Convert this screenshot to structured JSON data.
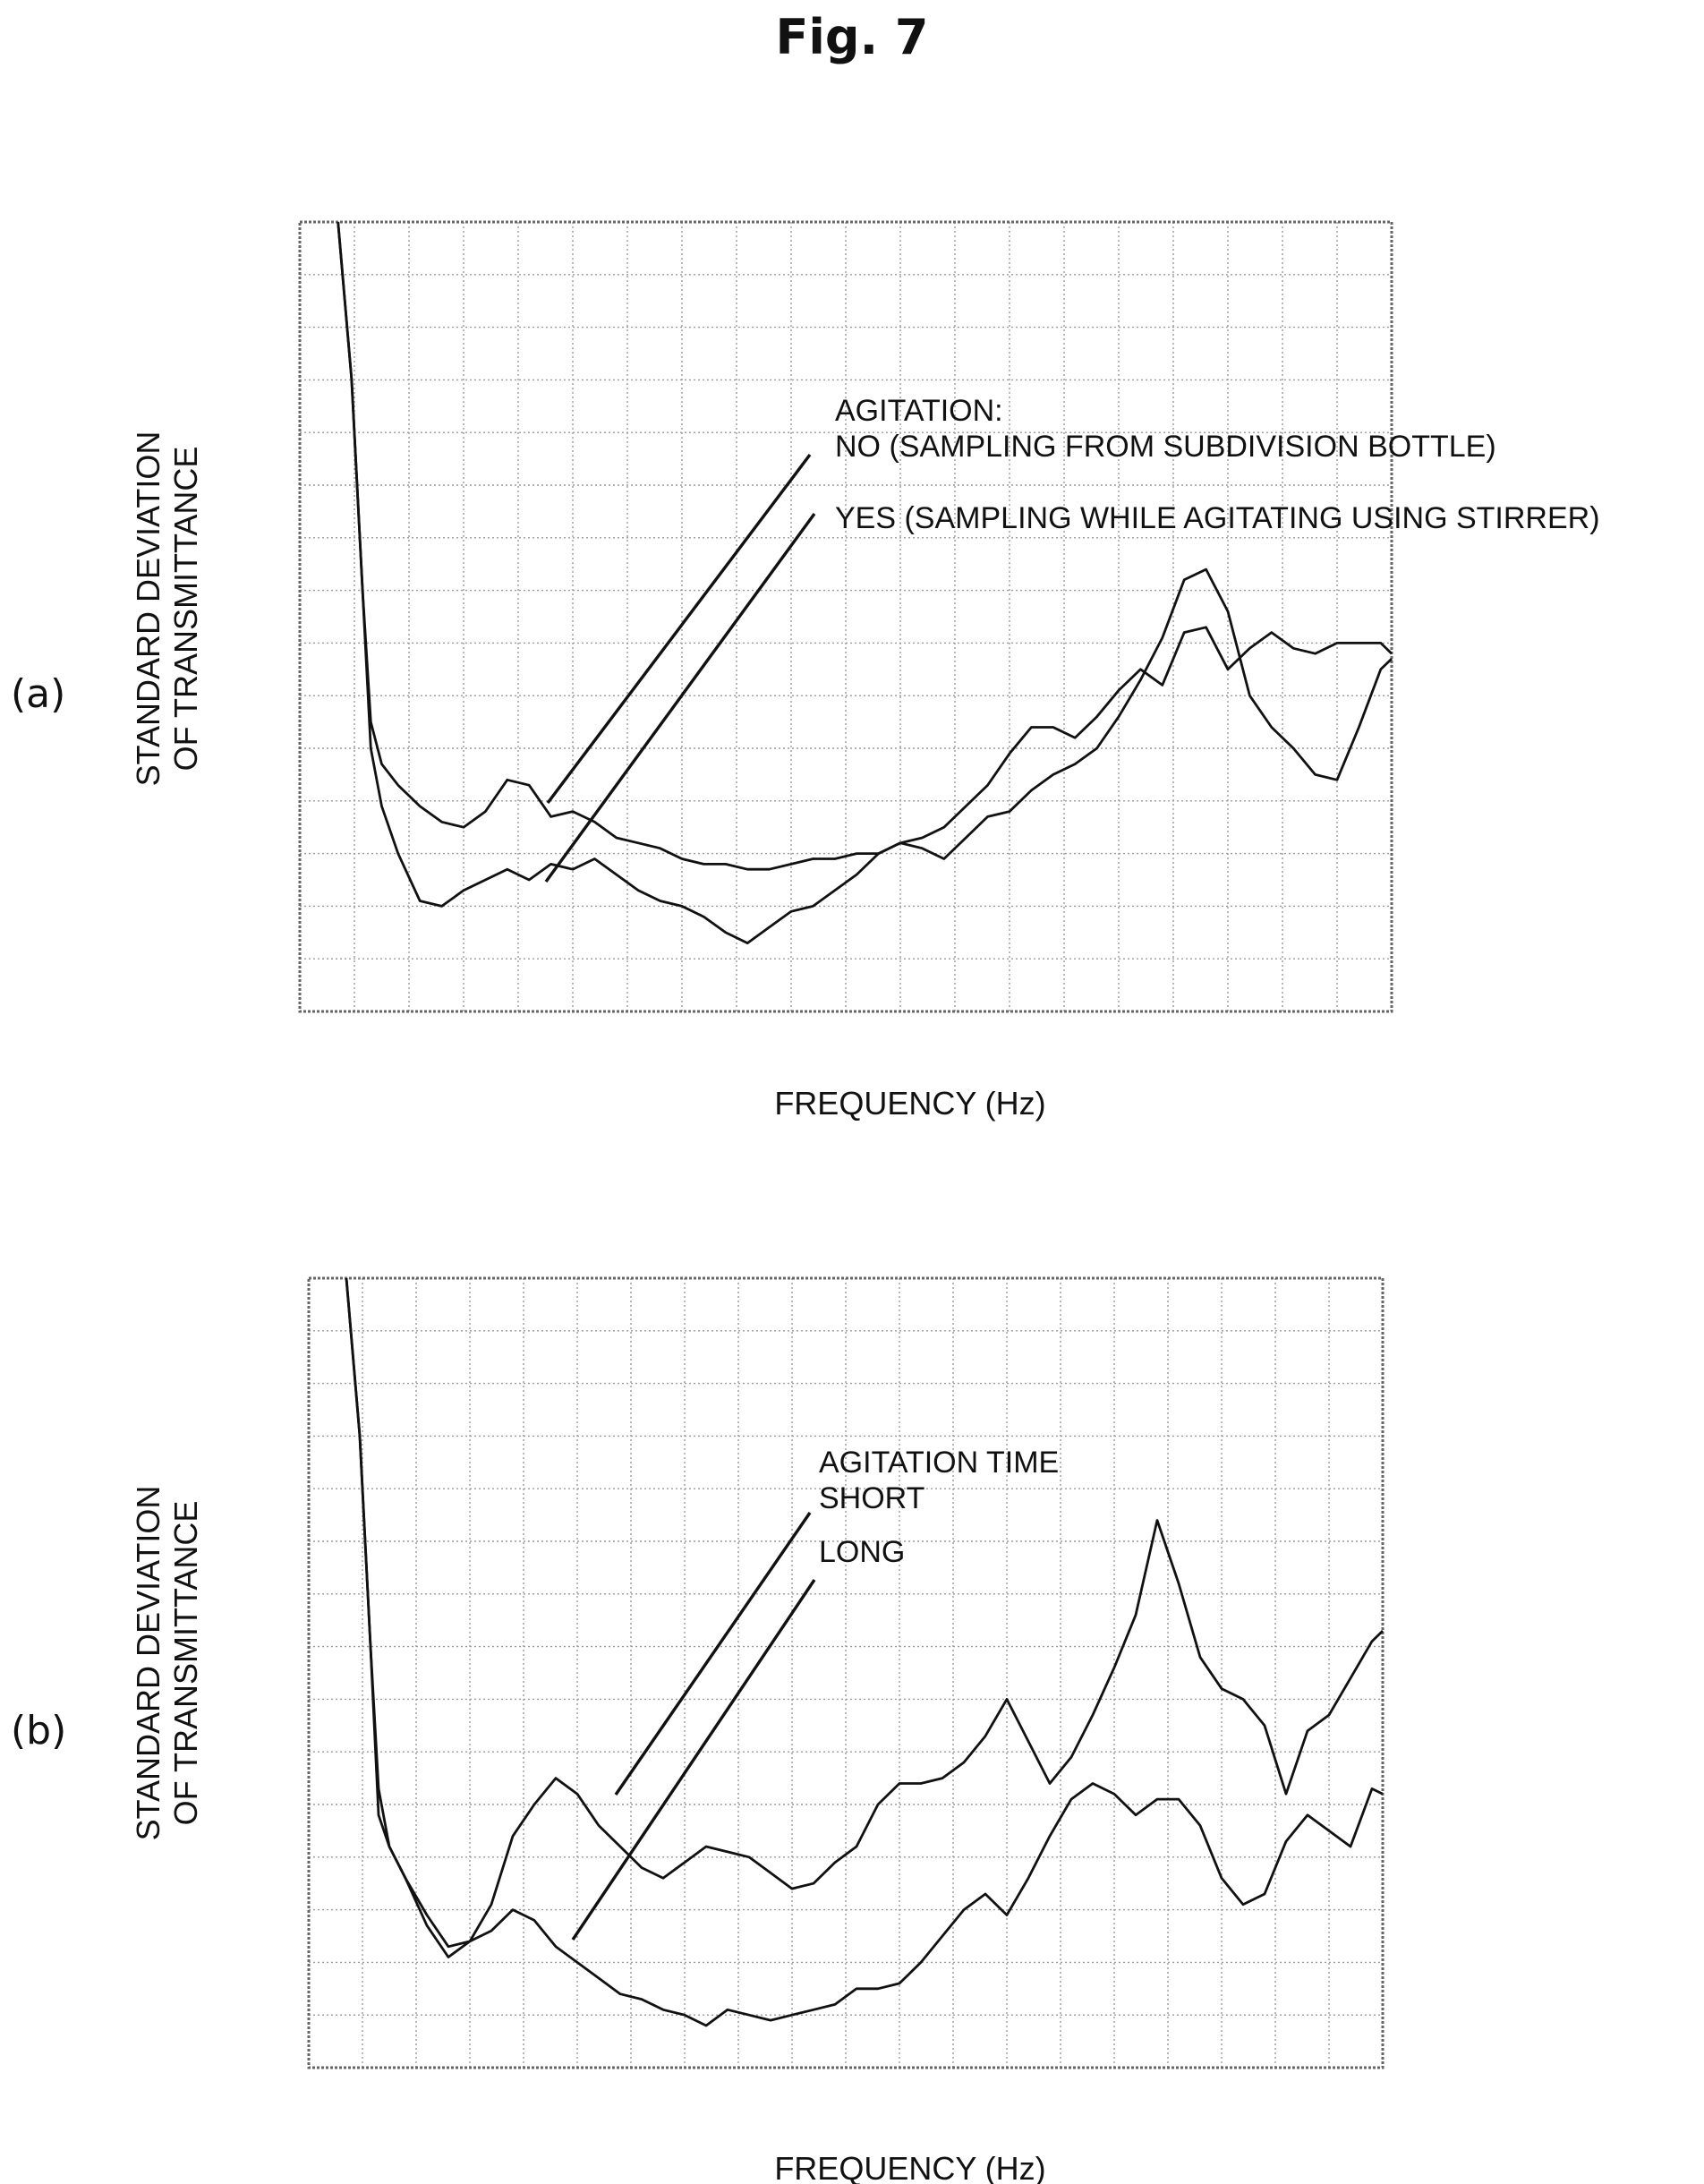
{
  "figure_title": "Fig. 7",
  "chart_data": [
    {
      "type": "line",
      "panel_label": "(a)",
      "ylabel": [
        "STANDARD DEVIATION",
        "OF TRANSMITTANCE"
      ],
      "xlabel": "FREQUENCY (Hz)",
      "xlim": [
        0,
        20000
      ],
      "ylim": [
        0,
        15
      ],
      "grid": true,
      "annotation_heading": "AGITATION:",
      "series": [
        {
          "name": "NO (SAMPLING FROM SUBDIVISION BOTTLE)",
          "x": [
            700,
            950,
            1150,
            1300,
            1500,
            1800,
            2200,
            2600,
            3000,
            3400,
            3800,
            4200,
            4600,
            5000,
            5400,
            5800,
            6200,
            6600,
            7000,
            7400,
            7800,
            8200,
            8600,
            9000,
            9400,
            9800,
            10200,
            10600,
            11000,
            11400,
            11800,
            12200,
            12600,
            13000,
            13400,
            13800,
            14200,
            14600,
            15000,
            15400,
            15800,
            16200,
            16600,
            17000,
            17400,
            17800,
            18200,
            18600,
            19000,
            19400,
            19800,
            20000
          ],
          "y": [
            15,
            12.0,
            8.0,
            5.5,
            4.7,
            4.3,
            3.9,
            3.6,
            3.5,
            3.8,
            4.4,
            4.3,
            3.7,
            3.8,
            3.6,
            3.3,
            3.2,
            3.1,
            2.9,
            2.8,
            2.8,
            2.7,
            2.7,
            2.8,
            2.9,
            2.9,
            3.0,
            3.0,
            3.2,
            3.3,
            3.5,
            3.9,
            4.3,
            4.9,
            5.4,
            5.4,
            5.2,
            5.6,
            6.1,
            6.5,
            6.2,
            7.2,
            7.3,
            6.5,
            6.9,
            7.2,
            6.9,
            6.8,
            7.0,
            7.0,
            7.0,
            6.8
          ]
        },
        {
          "name": "YES (SAMPLING WHILE AGITATING USING STIRRER)",
          "x": [
            700,
            950,
            1150,
            1300,
            1500,
            1800,
            2200,
            2600,
            3000,
            3400,
            3800,
            4200,
            4600,
            5000,
            5400,
            5800,
            6200,
            6600,
            7000,
            7400,
            7800,
            8200,
            8600,
            9000,
            9400,
            9800,
            10200,
            10600,
            11000,
            11400,
            11800,
            12200,
            12600,
            13000,
            13400,
            13800,
            14200,
            14600,
            15000,
            15400,
            15800,
            16200,
            16600,
            17000,
            17400,
            17800,
            18200,
            18600,
            19000,
            19400,
            19800,
            20000
          ],
          "y": [
            15,
            12.0,
            8.0,
            5.0,
            3.9,
            3.0,
            2.1,
            2.0,
            2.3,
            2.5,
            2.7,
            2.5,
            2.8,
            2.7,
            2.9,
            2.6,
            2.3,
            2.1,
            2.0,
            1.8,
            1.5,
            1.3,
            1.6,
            1.9,
            2.0,
            2.3,
            2.6,
            3.0,
            3.2,
            3.1,
            2.9,
            3.3,
            3.7,
            3.8,
            4.2,
            4.5,
            4.7,
            5.0,
            5.6,
            6.3,
            7.1,
            8.2,
            8.4,
            7.6,
            6.0,
            5.4,
            5.0,
            4.5,
            4.4,
            5.4,
            6.5,
            6.7
          ]
        }
      ]
    },
    {
      "type": "line",
      "panel_label": "(b)",
      "ylabel": [
        "STANDARD DEVIATION",
        "OF TRANSMITTANCE"
      ],
      "xlabel": "FREQUENCY (Hz)",
      "xlim": [
        0,
        20000
      ],
      "ylim": [
        0,
        15
      ],
      "grid": true,
      "annotation_heading": "AGITATION TIME",
      "series": [
        {
          "name": "SHORT",
          "x": [
            700,
            950,
            1150,
            1300,
            1500,
            1800,
            2200,
            2600,
            3000,
            3400,
            3800,
            4200,
            4600,
            5000,
            5400,
            5800,
            6200,
            6600,
            7000,
            7400,
            7800,
            8200,
            8600,
            9000,
            9400,
            9800,
            10200,
            10600,
            11000,
            11400,
            11800,
            12200,
            12600,
            13000,
            13400,
            13800,
            14200,
            14600,
            15000,
            15400,
            15800,
            16200,
            16600,
            17000,
            17400,
            17800,
            18200,
            18600,
            19000,
            19400,
            19800,
            20000
          ],
          "y": [
            15,
            12.0,
            8.0,
            5.3,
            4.2,
            3.6,
            2.9,
            2.3,
            2.4,
            3.1,
            4.4,
            5.0,
            5.5,
            5.2,
            4.6,
            4.2,
            3.8,
            3.6,
            3.9,
            4.2,
            4.1,
            4.0,
            3.7,
            3.4,
            3.5,
            3.9,
            4.2,
            5.0,
            5.4,
            5.4,
            5.5,
            5.8,
            6.3,
            7.0,
            6.2,
            5.4,
            5.9,
            6.7,
            7.6,
            8.6,
            10.4,
            9.2,
            7.8,
            7.2,
            7.0,
            6.5,
            5.2,
            6.4,
            6.7,
            7.4,
            8.1,
            8.3
          ]
        },
        {
          "name": "LONG",
          "x": [
            700,
            950,
            1150,
            1300,
            1500,
            1800,
            2200,
            2600,
            3000,
            3400,
            3800,
            4200,
            4600,
            5000,
            5400,
            5800,
            6200,
            6600,
            7000,
            7400,
            7800,
            8200,
            8600,
            9000,
            9400,
            9800,
            10200,
            10600,
            11000,
            11400,
            11800,
            12200,
            12600,
            13000,
            13400,
            13800,
            14200,
            14600,
            15000,
            15400,
            15800,
            16200,
            16600,
            17000,
            17400,
            17800,
            18200,
            18600,
            19000,
            19400,
            19800,
            20000
          ],
          "y": [
            15,
            12.0,
            8.0,
            4.8,
            4.2,
            3.6,
            2.7,
            2.1,
            2.4,
            2.6,
            3.0,
            2.8,
            2.3,
            2.0,
            1.7,
            1.4,
            1.3,
            1.1,
            1.0,
            0.8,
            1.1,
            1.0,
            0.9,
            1.0,
            1.1,
            1.2,
            1.5,
            1.5,
            1.6,
            2.0,
            2.5,
            3.0,
            3.3,
            2.9,
            3.6,
            4.4,
            5.1,
            5.4,
            5.2,
            4.8,
            5.1,
            5.1,
            4.6,
            3.6,
            3.1,
            3.3,
            4.3,
            4.8,
            4.5,
            4.2,
            5.3,
            5.2
          ]
        }
      ]
    }
  ]
}
